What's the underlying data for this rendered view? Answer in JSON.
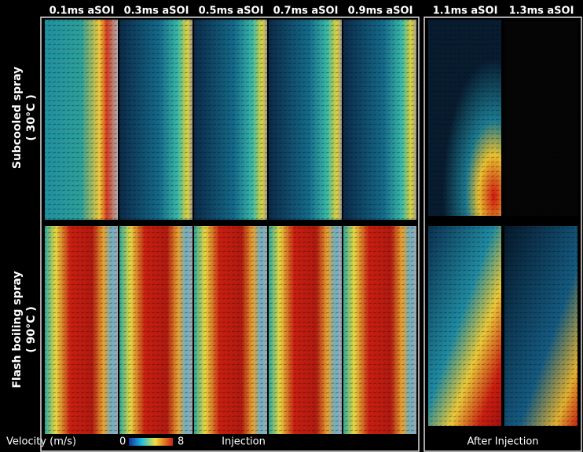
{
  "columns": [
    "0.1ms aSOI",
    "0.3ms aSOI",
    "0.5ms aSOI",
    "0.7ms aSOI",
    "0.9ms aSOI",
    "1.1ms aSOI",
    "1.3ms aSOI"
  ],
  "rows": [
    {
      "label_lines": [
        "Subcooled spray",
        "( 30°C )"
      ]
    },
    {
      "label_lines": [
        "Flash boiling spray",
        "( 90°C )"
      ]
    }
  ],
  "colorbar": {
    "label": "Velocity (m/s)",
    "min": 0,
    "max": 8
  },
  "groups": [
    "Injection",
    "After Injection"
  ]
}
